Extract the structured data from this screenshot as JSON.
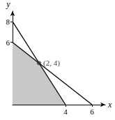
{
  "chart_data": {
    "type": "line",
    "x_label": "x",
    "y_label": "y",
    "xlim": [
      0,
      7
    ],
    "ylim": [
      0,
      9
    ],
    "xticks": [
      4,
      6
    ],
    "yticks": [
      6,
      8
    ],
    "grid": false,
    "series": [
      {
        "type": "area",
        "color": "#c8c8c8",
        "x": [
          0,
          2,
          4
        ],
        "values": [
          6,
          4,
          0
        ]
      },
      {
        "type": "line",
        "color": "#000000",
        "x": [
          0,
          4
        ],
        "values": [
          8,
          0
        ]
      },
      {
        "type": "line",
        "color": "#000000",
        "x": [
          0,
          6
        ],
        "values": [
          6,
          0
        ]
      }
    ],
    "annotations": [
      {
        "x": 2,
        "y": 4,
        "text": "(2, 4)",
        "marker": "circle",
        "color": "#333333"
      }
    ]
  }
}
